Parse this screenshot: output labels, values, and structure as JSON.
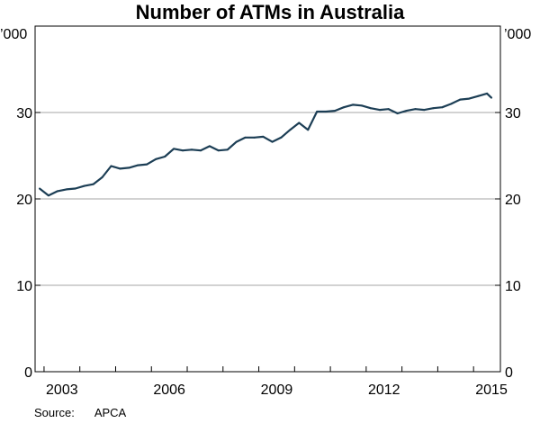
{
  "chart_data": {
    "type": "line",
    "title": "Number of ATMs in Australia",
    "unit_left": "’000",
    "unit_right": "’000",
    "source_label": "Source:",
    "source_value": "APCA",
    "ylim": [
      0,
      40
    ],
    "yticks": [
      0,
      10,
      20,
      30
    ],
    "xlim": [
      2002.75,
      2015.75
    ],
    "xticks": [
      2003,
      2006,
      2009,
      2012,
      2015
    ],
    "grid": true,
    "line_color": "#1c3e55",
    "series": [
      {
        "x": [
          2002.875,
          2003.125,
          2003.375,
          2003.625,
          2003.875,
          2004.125,
          2004.375,
          2004.625,
          2004.875,
          2005.125,
          2005.375,
          2005.625,
          2005.875,
          2006.125,
          2006.375,
          2006.625,
          2006.875,
          2007.125,
          2007.375,
          2007.625,
          2007.875,
          2008.125,
          2008.375,
          2008.625,
          2008.875,
          2009.125,
          2009.375,
          2009.625,
          2009.875,
          2010.125,
          2010.375,
          2010.625,
          2010.875,
          2011.125,
          2011.375,
          2011.625,
          2011.875,
          2012.125,
          2012.375,
          2012.625,
          2012.875,
          2013.125,
          2013.375,
          2013.625,
          2013.875,
          2014.125,
          2014.375,
          2014.625,
          2014.875,
          2015.125,
          2015.375,
          2015.5
        ],
        "y": [
          21.2,
          20.4,
          20.9,
          21.1,
          21.2,
          21.5,
          21.7,
          22.5,
          23.8,
          23.5,
          23.6,
          23.9,
          24.0,
          24.6,
          24.9,
          25.8,
          25.6,
          25.7,
          25.6,
          26.1,
          25.6,
          25.7,
          26.6,
          27.1,
          27.1,
          27.2,
          26.6,
          27.1,
          28.0,
          28.8,
          28.0,
          30.1,
          30.1,
          30.2,
          30.6,
          30.9,
          30.8,
          30.5,
          30.3,
          30.4,
          29.9,
          30.2,
          30.4,
          30.3,
          30.5,
          30.6,
          31.0,
          31.5,
          31.6,
          31.9,
          32.2,
          31.7
        ]
      }
    ]
  }
}
